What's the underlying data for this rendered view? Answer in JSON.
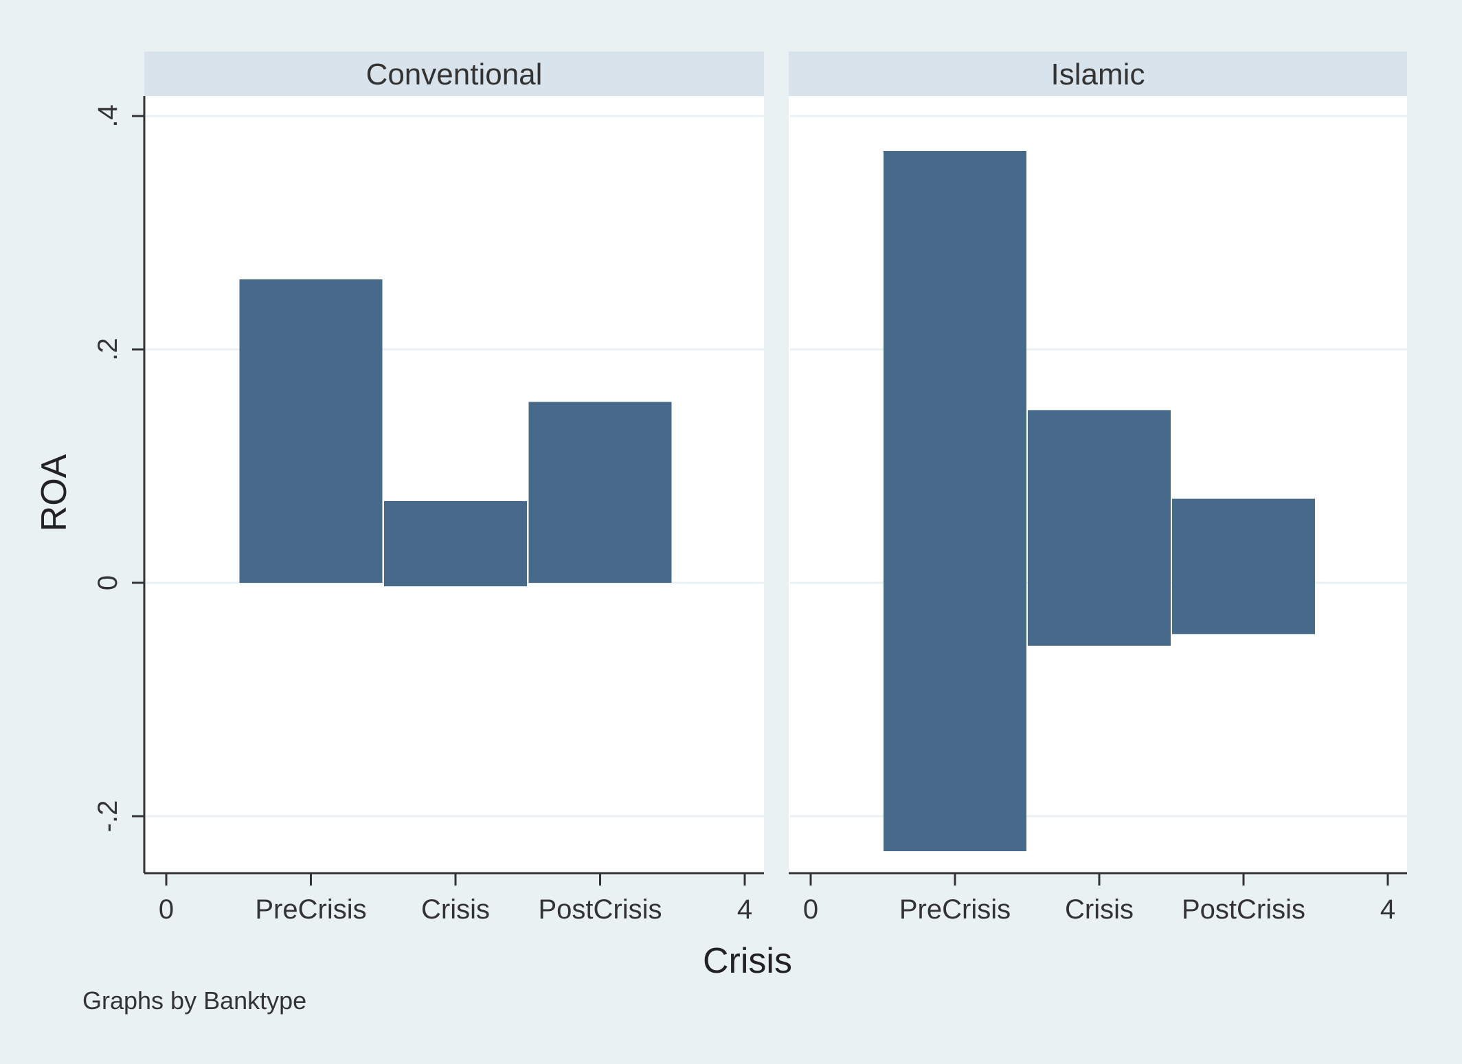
{
  "chart_data": {
    "type": "bar",
    "style": "range bar (min to max)",
    "panel_variable": "Banktype",
    "categories": [
      "PreCrisis",
      "Crisis",
      "PostCrisis"
    ],
    "category_x": [
      1,
      2,
      3
    ],
    "xlim": [
      0,
      4
    ],
    "x_numeric_ticks": [
      "0",
      "4"
    ],
    "ylim": [
      -0.24,
      0.41
    ],
    "y_ticks": [
      -0.2,
      0,
      0.2,
      0.4
    ],
    "y_tick_labels": [
      "-.2",
      "0",
      ".2",
      ".4"
    ],
    "xlabel": "Crisis",
    "ylabel": "ROA",
    "note": "Graphs by Banktype",
    "grid": true,
    "bar_color": "#476a8b",
    "panels": [
      {
        "name": "Conventional",
        "bars": [
          {
            "category": "PreCrisis",
            "low": 0.0,
            "high": 0.26
          },
          {
            "category": "Crisis",
            "low": -0.003,
            "high": 0.07
          },
          {
            "category": "PostCrisis",
            "low": 0.0,
            "high": 0.155
          }
        ]
      },
      {
        "name": "Islamic",
        "bars": [
          {
            "category": "PreCrisis",
            "low": -0.23,
            "high": 0.37
          },
          {
            "category": "Crisis",
            "low": -0.054,
            "high": 0.148
          },
          {
            "category": "PostCrisis",
            "low": -0.044,
            "high": 0.072
          }
        ]
      }
    ]
  },
  "colors": {
    "background": "#e9f1f3",
    "plot_area": "#ffffff",
    "strip": "#d9e3eb",
    "axis": "#333333",
    "grid": "#eaf0f3"
  }
}
